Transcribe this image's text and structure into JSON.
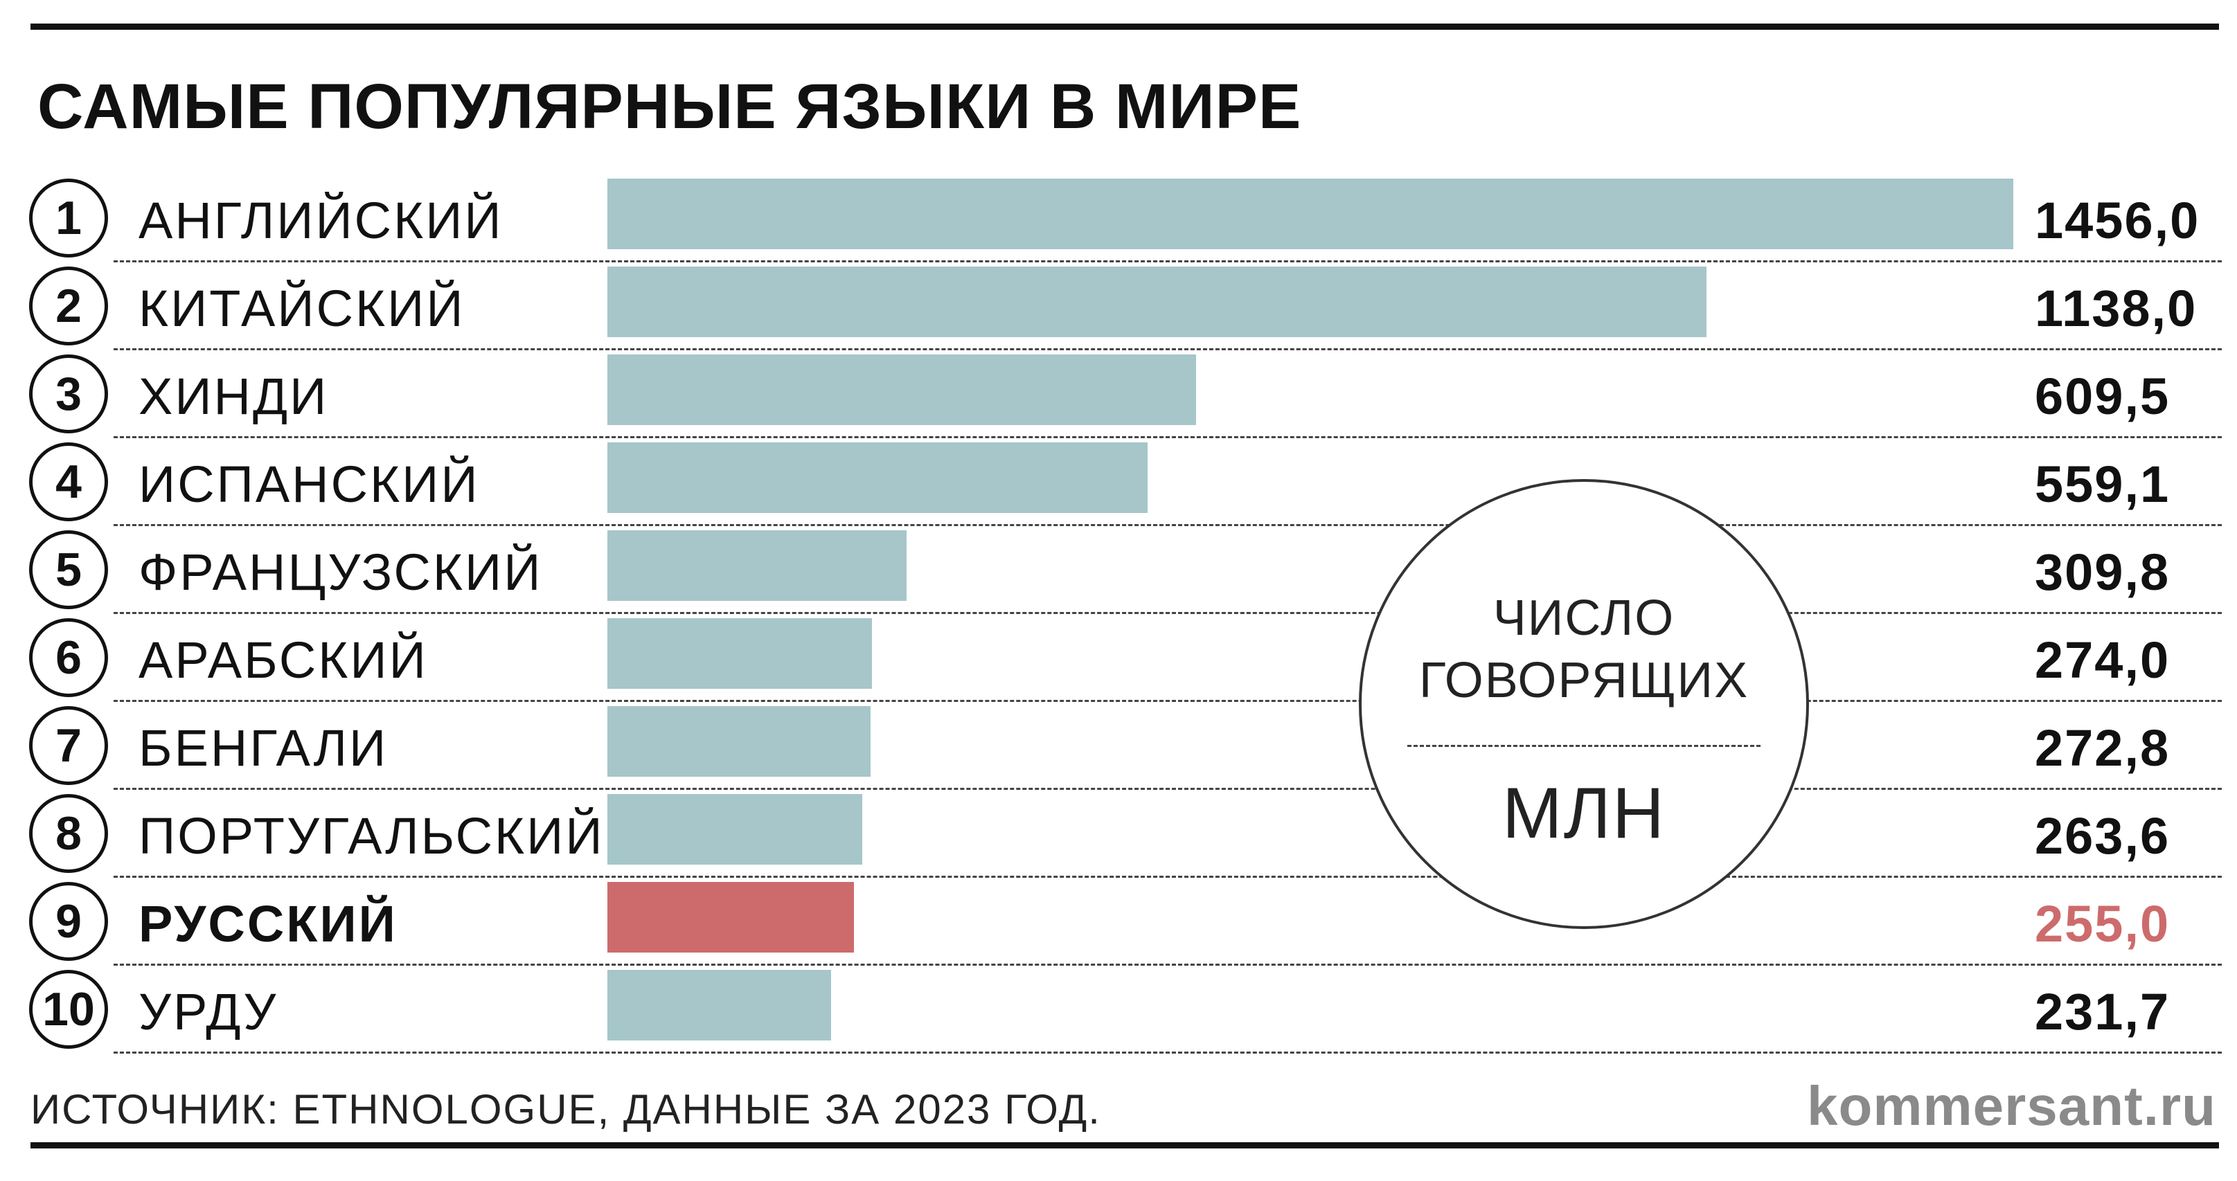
{
  "title": "САМЫЕ ПОПУЛЯРНЫЕ ЯЗЫКИ В МИРЕ",
  "badge": {
    "line1": "ЧИСЛО",
    "line2": "ГОВОРЯЩИХ",
    "unit": "МЛН"
  },
  "source": "ИСТОЧНИК: ETHNOLOGUE, ДАННЫЕ ЗА 2023 ГОД.",
  "site": "kommersant.ru",
  "colors": {
    "bar": "#a6c6ca",
    "highlight": "#cd6b6c",
    "text": "#111111"
  },
  "chart_data": {
    "type": "bar",
    "orientation": "horizontal",
    "value_labels_shown": true,
    "rows": [
      {
        "rank": "1",
        "label": "АНГЛИЙСКИЙ",
        "value": 1456.0,
        "value_label": "1456,0",
        "highlight": false
      },
      {
        "rank": "2",
        "label": "КИТАЙСКИЙ",
        "value": 1138.0,
        "value_label": "1138,0",
        "highlight": false
      },
      {
        "rank": "3",
        "label": "ХИНДИ",
        "value": 609.5,
        "value_label": "609,5",
        "highlight": false
      },
      {
        "rank": "4",
        "label": "ИСПАНСКИЙ",
        "value": 559.1,
        "value_label": "559,1",
        "highlight": false
      },
      {
        "rank": "5",
        "label": "ФРАНЦУЗСКИЙ",
        "value": 309.8,
        "value_label": "309,8",
        "highlight": false
      },
      {
        "rank": "6",
        "label": "АРАБСКИЙ",
        "value": 274.0,
        "value_label": "274,0",
        "highlight": false
      },
      {
        "rank": "7",
        "label": "БЕНГАЛИ",
        "value": 272.8,
        "value_label": "272,8",
        "highlight": false
      },
      {
        "rank": "8",
        "label": "ПОРТУГАЛЬСКИЙ",
        "value": 263.6,
        "value_label": "263,6",
        "highlight": false
      },
      {
        "rank": "9",
        "label": "РУССКИЙ",
        "value": 255.0,
        "value_label": "255,0",
        "highlight": true
      },
      {
        "rank": "10",
        "label": "УРДУ",
        "value": 231.7,
        "value_label": "231,7",
        "highlight": false
      }
    ]
  }
}
